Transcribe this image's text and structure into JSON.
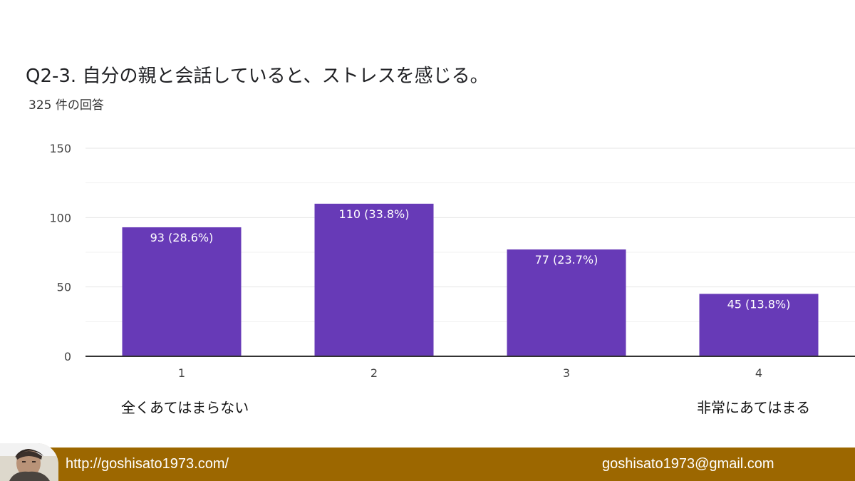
{
  "title": "Q2-3.  自分の親と会話していると、ストレスを感じる。",
  "subtitle": "325 件の回答",
  "scale_labels": {
    "left": "全くあてはまらない",
    "right": "非常にあてはまる"
  },
  "footer": {
    "url": "http://goshisato1973.com/",
    "email": "goshisato1973@gmail.com"
  },
  "colors": {
    "bar": "#673ab7",
    "footer": "#9c6700",
    "grid": "#e6e6e6",
    "axis": "#333333"
  },
  "chart_data": {
    "type": "bar",
    "categories": [
      "1",
      "2",
      "3",
      "4"
    ],
    "values": [
      93,
      110,
      77,
      45
    ],
    "value_labels": [
      "93 (28.6%)",
      "110 (33.8%)",
      "77 (23.7%)",
      "45 (13.8%)"
    ],
    "yticks": [
      0,
      50,
      100,
      150
    ],
    "ylim": [
      0,
      150
    ],
    "grid": true
  }
}
